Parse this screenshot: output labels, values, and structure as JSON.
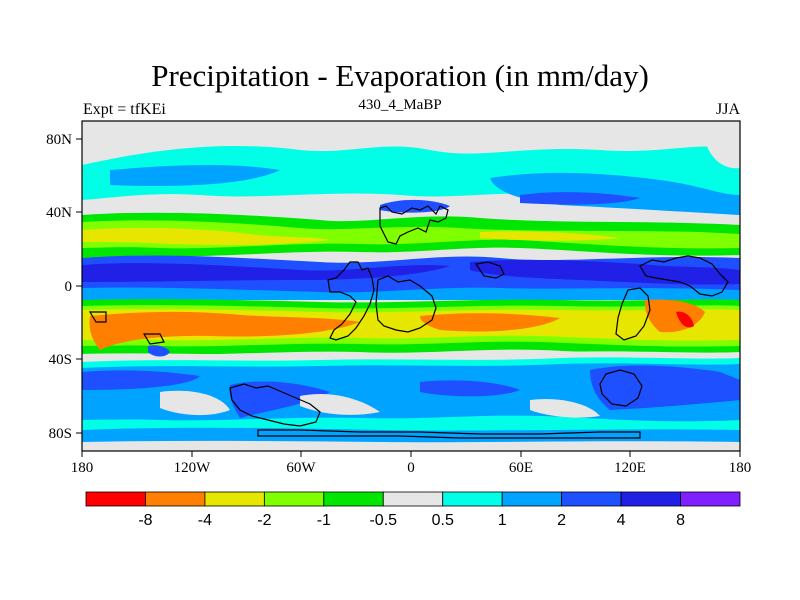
{
  "title": "Precipitation - Evaporation (in mm/day)",
  "subtitle_left": "Expt = tfKEi",
  "subtitle_center": "430_4_MaBP",
  "subtitle_right": "JJA",
  "x_ticks": [
    "180",
    "120W",
    "60W",
    "0",
    "60E",
    "120E",
    "180"
  ],
  "y_ticks": [
    "80N",
    "40N",
    "0",
    "40S",
    "80S"
  ],
  "colorbar": {
    "labels": [
      "-8",
      "-4",
      "-2",
      "-1",
      "-0.5",
      "0.5",
      "1",
      "2",
      "4",
      "8"
    ],
    "colors": [
      "#ff0000",
      "#ff7f00",
      "#e6e600",
      "#80ff00",
      "#00e600",
      "#e6e6e6",
      "#00ffe6",
      "#00a3ff",
      "#1e50ff",
      "#2020e6",
      "#8020ff"
    ]
  },
  "colors": {
    "strong_wet": "#2020e6",
    "wet": "#1e50ff",
    "moderate_wet": "#00a3ff",
    "slight_wet": "#00ffe6",
    "neutral": "#e6e6e6",
    "slight_dry": "#00e600",
    "moderate_dry": "#80ff00",
    "dry": "#e6e600",
    "very_dry": "#ff7f00",
    "extreme_dry": "#ff0000"
  }
}
